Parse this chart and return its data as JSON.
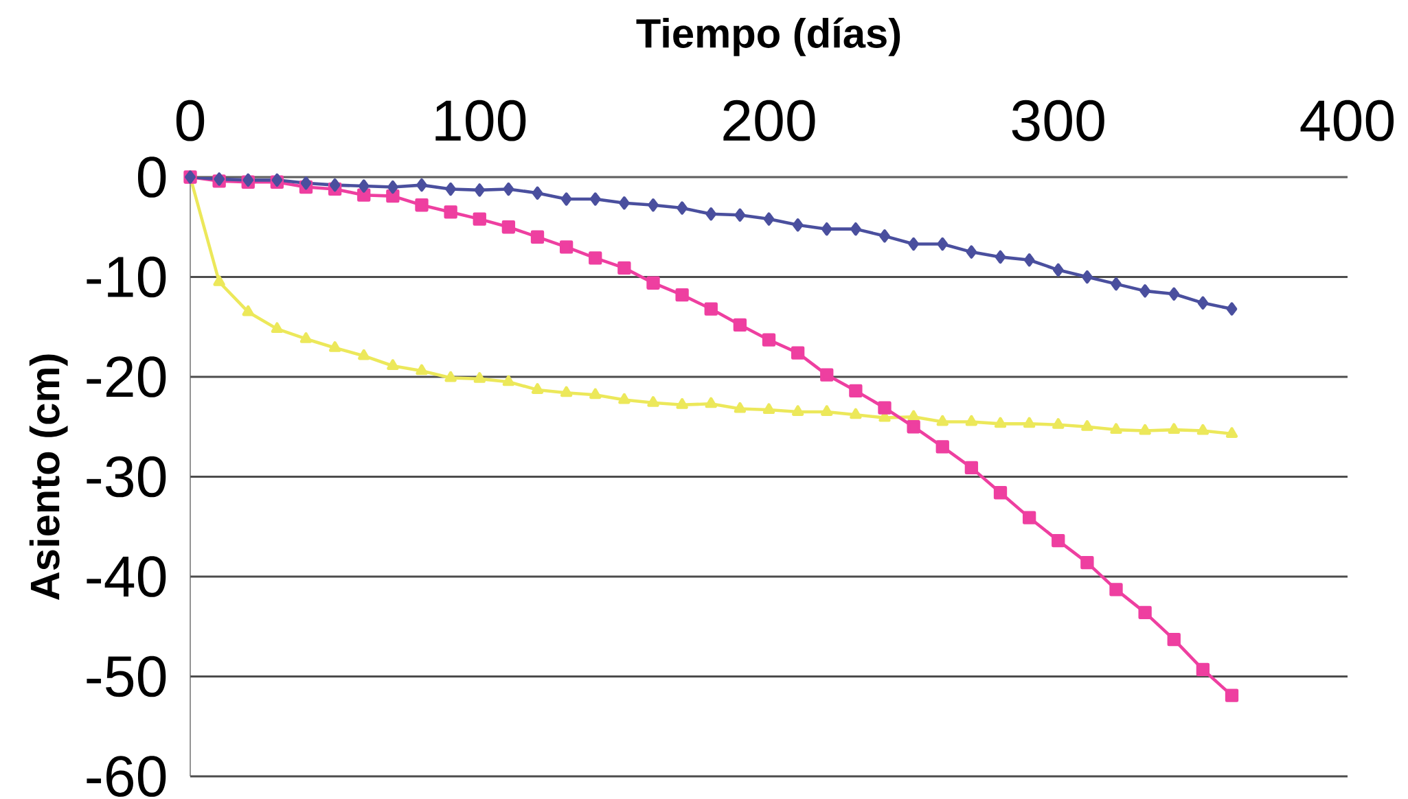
{
  "chart_data": {
    "type": "line",
    "xlabel": "Tiempo (días)",
    "ylabel": "Asiento (cm)",
    "x": [
      0,
      10,
      20,
      30,
      40,
      50,
      60,
      70,
      80,
      90,
      100,
      110,
      120,
      130,
      140,
      150,
      160,
      170,
      180,
      190,
      200,
      210,
      220,
      230,
      240,
      250,
      260,
      270,
      280,
      290,
      300,
      310,
      320,
      330,
      340,
      350,
      360
    ],
    "xlim": [
      0,
      400
    ],
    "xticks": [
      0,
      100,
      200,
      300,
      400
    ],
    "ylim": [
      -60,
      0
    ],
    "yticks": [
      -60,
      -50,
      -40,
      -30,
      -20,
      -10,
      0
    ],
    "grid": "y",
    "line_style": "solid",
    "series": [
      {
        "color": "#4a4f9e",
        "marker": "diamond",
        "values": [
          0,
          -0.2,
          -0.3,
          -0.3,
          -0.6,
          -0.8,
          -0.9,
          -1.0,
          -0.8,
          -1.2,
          -1.3,
          -1.2,
          -1.6,
          -2.2,
          -2.2,
          -2.6,
          -2.8,
          -3.1,
          -3.7,
          -3.8,
          -4.2,
          -4.8,
          -5.2,
          -5.2,
          -5.9,
          -6.7,
          -6.7,
          -7.5,
          -8.0,
          -8.3,
          -9.3,
          -10.0,
          -10.7,
          -11.4,
          -11.7,
          -12.6,
          -13.2
        ]
      },
      {
        "color": "#ee3fa0",
        "marker": "square",
        "values": [
          0,
          -0.4,
          -0.5,
          -0.5,
          -1.0,
          -1.2,
          -1.8,
          -1.9,
          -2.8,
          -3.5,
          -4.2,
          -5.0,
          -6.0,
          -7.0,
          -8.1,
          -9.1,
          -10.6,
          -11.8,
          -13.2,
          -14.8,
          -16.3,
          -17.6,
          -19.8,
          -21.4,
          -23.1,
          -25.0,
          -27.0,
          -29.1,
          -31.6,
          -34.1,
          -36.4,
          -38.6,
          -41.3,
          -43.6,
          -46.3,
          -49.3,
          -51.9
        ]
      },
      {
        "color": "#ece85a",
        "marker": "triangle",
        "values": [
          0,
          -10.5,
          -13.5,
          -15.2,
          -16.2,
          -17.1,
          -17.9,
          -18.9,
          -19.4,
          -20.1,
          -20.2,
          -20.5,
          -21.3,
          -21.6,
          -21.8,
          -22.3,
          -22.6,
          -22.8,
          -22.7,
          -23.2,
          -23.3,
          -23.5,
          -23.5,
          -23.8,
          -24.1,
          -24.0,
          -24.5,
          -24.5,
          -24.7,
          -24.7,
          -24.8,
          -25.0,
          -25.3,
          -25.4,
          -25.3,
          -25.4,
          -25.7
        ]
      }
    ]
  }
}
